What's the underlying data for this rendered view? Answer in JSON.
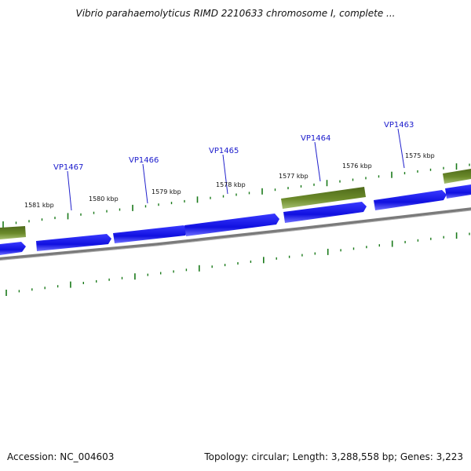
{
  "title": "Vibrio parahaemolyticus RIMD 2210633 chromosome I, complete ...",
  "gene_labels": [
    "VP1467",
    "VP1466",
    "VP1465",
    "VP1464",
    "VP1463"
  ],
  "kbp_labels": [
    "1581 kbp",
    "1580 kbp",
    "1579 kbp",
    "1578 kbp",
    "1577 kbp",
    "1576 kbp",
    "1575 kbp"
  ],
  "colors": {
    "cds": "#1010e0",
    "cds_light": "#5a5aff",
    "rna_gene": "#6b8a2a",
    "backbone": "#808080",
    "ticks": "#1a7a1a",
    "gene_label": "#1a1acc"
  },
  "footer": {
    "accession": "Accession: NC_004603",
    "summary": "Topology: circular; Length: 3,288,558 bp; Genes: 3,223"
  }
}
